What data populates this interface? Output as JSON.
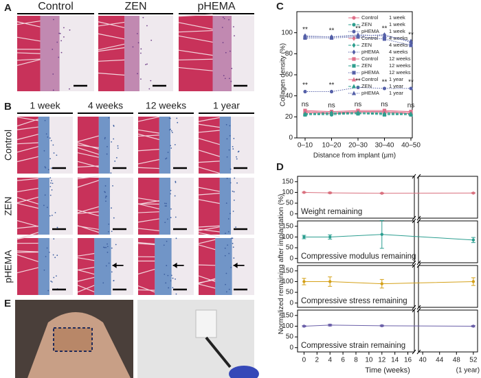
{
  "figure": {
    "panel_labels": [
      "A",
      "B",
      "C",
      "D",
      "E"
    ],
    "panel_a_columns": [
      "Control",
      "ZEN",
      "pHEMA"
    ],
    "panel_b_columns": [
      "1 week",
      "4 weeks",
      "12 weeks",
      "1 year"
    ],
    "panel_b_rows": [
      "Control",
      "ZEN",
      "pHEMA"
    ]
  },
  "chart_data": [
    {
      "type": "line",
      "ylabel": "Collagen density (%)",
      "xlabel": "Distance from implant (μm)",
      "categories": [
        "0–10",
        "10–20",
        "20–30",
        "30–40",
        "40–50"
      ],
      "ylim": [
        0,
        120
      ],
      "yticks": [
        0,
        20,
        40,
        60,
        80,
        100
      ],
      "significance_high": [
        "**",
        "**",
        "**",
        "**",
        "**"
      ],
      "significance_mid": [
        "**",
        "**",
        "**",
        "**",
        "**"
      ],
      "significance_low": [
        "ns",
        "ns",
        "ns",
        "ns",
        "ns"
      ],
      "series": [
        {
          "name": "Control",
          "period": "1 week",
          "color": "#e0708a",
          "marker": "circle",
          "line_style": "solid",
          "values": [
            24,
            23,
            24,
            24,
            23
          ]
        },
        {
          "name": "ZEN",
          "period": "1 week",
          "color": "#2e9e8e",
          "marker": "circle",
          "line_style": "dashed",
          "values": [
            22,
            22,
            23,
            23,
            22
          ]
        },
        {
          "name": "pHEMA",
          "period": "1 week",
          "color": "#5560a8",
          "marker": "circle",
          "line_style": "dotted",
          "values": [
            44,
            44,
            48,
            47,
            47
          ]
        },
        {
          "name": "Control",
          "period": "4 weeks",
          "color": "#e0708a",
          "marker": "diamond",
          "line_style": "solid",
          "values": [
            25,
            24,
            25,
            25,
            24
          ]
        },
        {
          "name": "ZEN",
          "period": "4 weeks",
          "color": "#2e9e8e",
          "marker": "diamond",
          "line_style": "dashed",
          "values": [
            23,
            23,
            24,
            24,
            23
          ]
        },
        {
          "name": "pHEMA",
          "period": "4 weeks",
          "color": "#5560a8",
          "marker": "diamond",
          "line_style": "dotted",
          "values": [
            97,
            96,
            97,
            98,
            91
          ]
        },
        {
          "name": "Control",
          "period": "12 weeks",
          "color": "#e0708a",
          "marker": "square",
          "line_style": "solid",
          "values": [
            26,
            25,
            26,
            26,
            25
          ]
        },
        {
          "name": "ZEN",
          "period": "12 weeks",
          "color": "#2e9e8e",
          "marker": "square",
          "line_style": "dashed",
          "values": [
            22,
            23,
            23,
            22,
            22
          ]
        },
        {
          "name": "pHEMA",
          "period": "12 weeks",
          "color": "#5560a8",
          "marker": "square",
          "line_style": "dotted",
          "values": [
            95,
            95,
            96,
            94,
            88
          ]
        },
        {
          "name": "Control",
          "period": "1 year",
          "color": "#e0708a",
          "marker": "triangle",
          "line_style": "solid",
          "values": [
            25,
            24,
            25,
            25,
            24
          ]
        },
        {
          "name": "ZEN",
          "period": "1 year",
          "color": "#2e9e8e",
          "marker": "triangle",
          "line_style": "dashed",
          "values": [
            23,
            24,
            24,
            23,
            23
          ]
        },
        {
          "name": "pHEMA",
          "period": "1 year",
          "color": "#5560a8",
          "marker": "triangle",
          "line_style": "dotted",
          "values": [
            96,
            96,
            98,
            97,
            92
          ]
        }
      ]
    },
    {
      "type": "line",
      "label": "Weight remaining",
      "ylabel": "Normalized remaining after implantation (%)",
      "color": "#d9707e",
      "x": [
        0,
        4,
        12,
        52
      ],
      "values": [
        100,
        98,
        96,
        97
      ],
      "errors": [
        2,
        3,
        2,
        2
      ],
      "ylim": [
        -20,
        175
      ],
      "yticks": [
        0,
        50,
        100,
        150
      ]
    },
    {
      "type": "line",
      "label": "Compressive modulus remaining",
      "color": "#2a9d8f",
      "x": [
        0,
        4,
        12,
        52
      ],
      "values": [
        100,
        100,
        112,
        86
      ],
      "errors": [
        8,
        10,
        65,
        12
      ],
      "ylim": [
        -20,
        175
      ],
      "yticks": [
        0,
        50,
        100,
        150
      ]
    },
    {
      "type": "line",
      "label": "Compressive stress remaining",
      "color": "#d4a017",
      "x": [
        0,
        4,
        12,
        52
      ],
      "values": [
        100,
        100,
        90,
        100
      ],
      "errors": [
        15,
        22,
        20,
        18
      ],
      "ylim": [
        -20,
        175
      ],
      "yticks": [
        0,
        50,
        100,
        150
      ]
    },
    {
      "type": "line",
      "label": "Compressive strain remaining",
      "color": "#6a5fa8",
      "x": [
        0,
        4,
        12,
        52
      ],
      "values": [
        100,
        105,
        102,
        100
      ],
      "errors": [
        3,
        4,
        3,
        3
      ],
      "ylim": [
        -20,
        175
      ],
      "yticks": [
        0,
        50,
        100,
        150
      ],
      "xlabel": "Time (weeks)",
      "xlim": [
        -1,
        53
      ],
      "xbreak": [
        17,
        39
      ],
      "xticks": [
        0,
        2,
        4,
        6,
        8,
        10,
        12,
        14,
        16,
        40,
        44,
        48,
        52
      ],
      "x_note": "(1 year)"
    }
  ]
}
